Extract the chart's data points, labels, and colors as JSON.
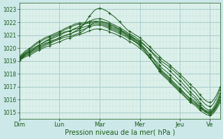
{
  "bg_color": "#cce8e8",
  "plot_bg_color": "#ddf0ea",
  "grid_major_color": "#aacccc",
  "grid_minor_color": "#c4e4de",
  "line_color": "#1a5c1a",
  "ylim": [
    1014.5,
    1023.5
  ],
  "yticks": [
    1015,
    1016,
    1017,
    1018,
    1019,
    1020,
    1021,
    1022,
    1023
  ],
  "xlabel": "Pression niveau de la mer( hPa )",
  "day_labels": [
    "Dim",
    "Lun",
    "Mar",
    "Mer",
    "Jeu",
    "Ve"
  ],
  "day_x": [
    0,
    48,
    96,
    144,
    192,
    228
  ],
  "xlim": [
    0,
    240
  ],
  "num_points": 241,
  "ensemble_control_points": [
    {
      "x": [
        0,
        10,
        25,
        48,
        70,
        96,
        110,
        130,
        144,
        170,
        192,
        210,
        228,
        240
      ],
      "y": [
        1019.0,
        1019.6,
        1020.2,
        1020.8,
        1021.4,
        1023.1,
        1022.6,
        1021.4,
        1020.8,
        1019.2,
        1018.0,
        1016.8,
        1015.8,
        1017.0
      ]
    },
    {
      "x": [
        0,
        10,
        25,
        48,
        70,
        96,
        110,
        130,
        144,
        170,
        192,
        210,
        228,
        240
      ],
      "y": [
        1019.0,
        1019.5,
        1020.0,
        1020.7,
        1021.1,
        1022.1,
        1021.8,
        1021.0,
        1020.5,
        1019.0,
        1017.8,
        1016.5,
        1015.5,
        1016.8
      ]
    },
    {
      "x": [
        0,
        10,
        25,
        48,
        70,
        96,
        110,
        130,
        144,
        170,
        192,
        210,
        228,
        240
      ],
      "y": [
        1019.1,
        1019.7,
        1020.3,
        1021.0,
        1021.6,
        1022.3,
        1021.9,
        1021.2,
        1020.6,
        1018.8,
        1017.5,
        1016.2,
        1015.2,
        1016.5
      ]
    },
    {
      "x": [
        0,
        10,
        25,
        48,
        70,
        96,
        110,
        130,
        144,
        170,
        192,
        210,
        228,
        240
      ],
      "y": [
        1019.2,
        1019.8,
        1020.5,
        1021.2,
        1021.8,
        1022.0,
        1021.6,
        1021.0,
        1020.3,
        1018.5,
        1017.2,
        1016.0,
        1015.0,
        1016.3
      ]
    },
    {
      "x": [
        0,
        10,
        25,
        48,
        70,
        96,
        110,
        130,
        144,
        170,
        192,
        210,
        228,
        240
      ],
      "y": [
        1019.0,
        1019.4,
        1019.9,
        1020.5,
        1021.0,
        1021.5,
        1021.2,
        1020.6,
        1020.0,
        1018.2,
        1016.8,
        1015.8,
        1014.9,
        1016.0
      ]
    },
    {
      "x": [
        0,
        10,
        25,
        48,
        70,
        96,
        110,
        130,
        144,
        170,
        192,
        210,
        228,
        240
      ],
      "y": [
        1019.3,
        1019.9,
        1020.6,
        1021.3,
        1021.9,
        1022.1,
        1021.7,
        1021.1,
        1020.4,
        1018.3,
        1016.9,
        1015.7,
        1015.1,
        1016.2
      ]
    },
    {
      "x": [
        0,
        10,
        25,
        48,
        70,
        96,
        110,
        130,
        144,
        170,
        192,
        210,
        228,
        240
      ],
      "y": [
        1019.1,
        1019.6,
        1020.1,
        1020.8,
        1021.3,
        1021.8,
        1021.4,
        1020.8,
        1020.2,
        1018.0,
        1016.6,
        1015.5,
        1014.8,
        1015.8
      ]
    },
    {
      "x": [
        0,
        10,
        25,
        48,
        70,
        96,
        110,
        130,
        144,
        170,
        192,
        210,
        228,
        240
      ],
      "y": [
        1019.2,
        1019.7,
        1020.3,
        1021.1,
        1021.5,
        1021.9,
        1021.5,
        1020.9,
        1020.2,
        1018.1,
        1016.7,
        1015.6,
        1015.0,
        1016.0
      ]
    }
  ]
}
